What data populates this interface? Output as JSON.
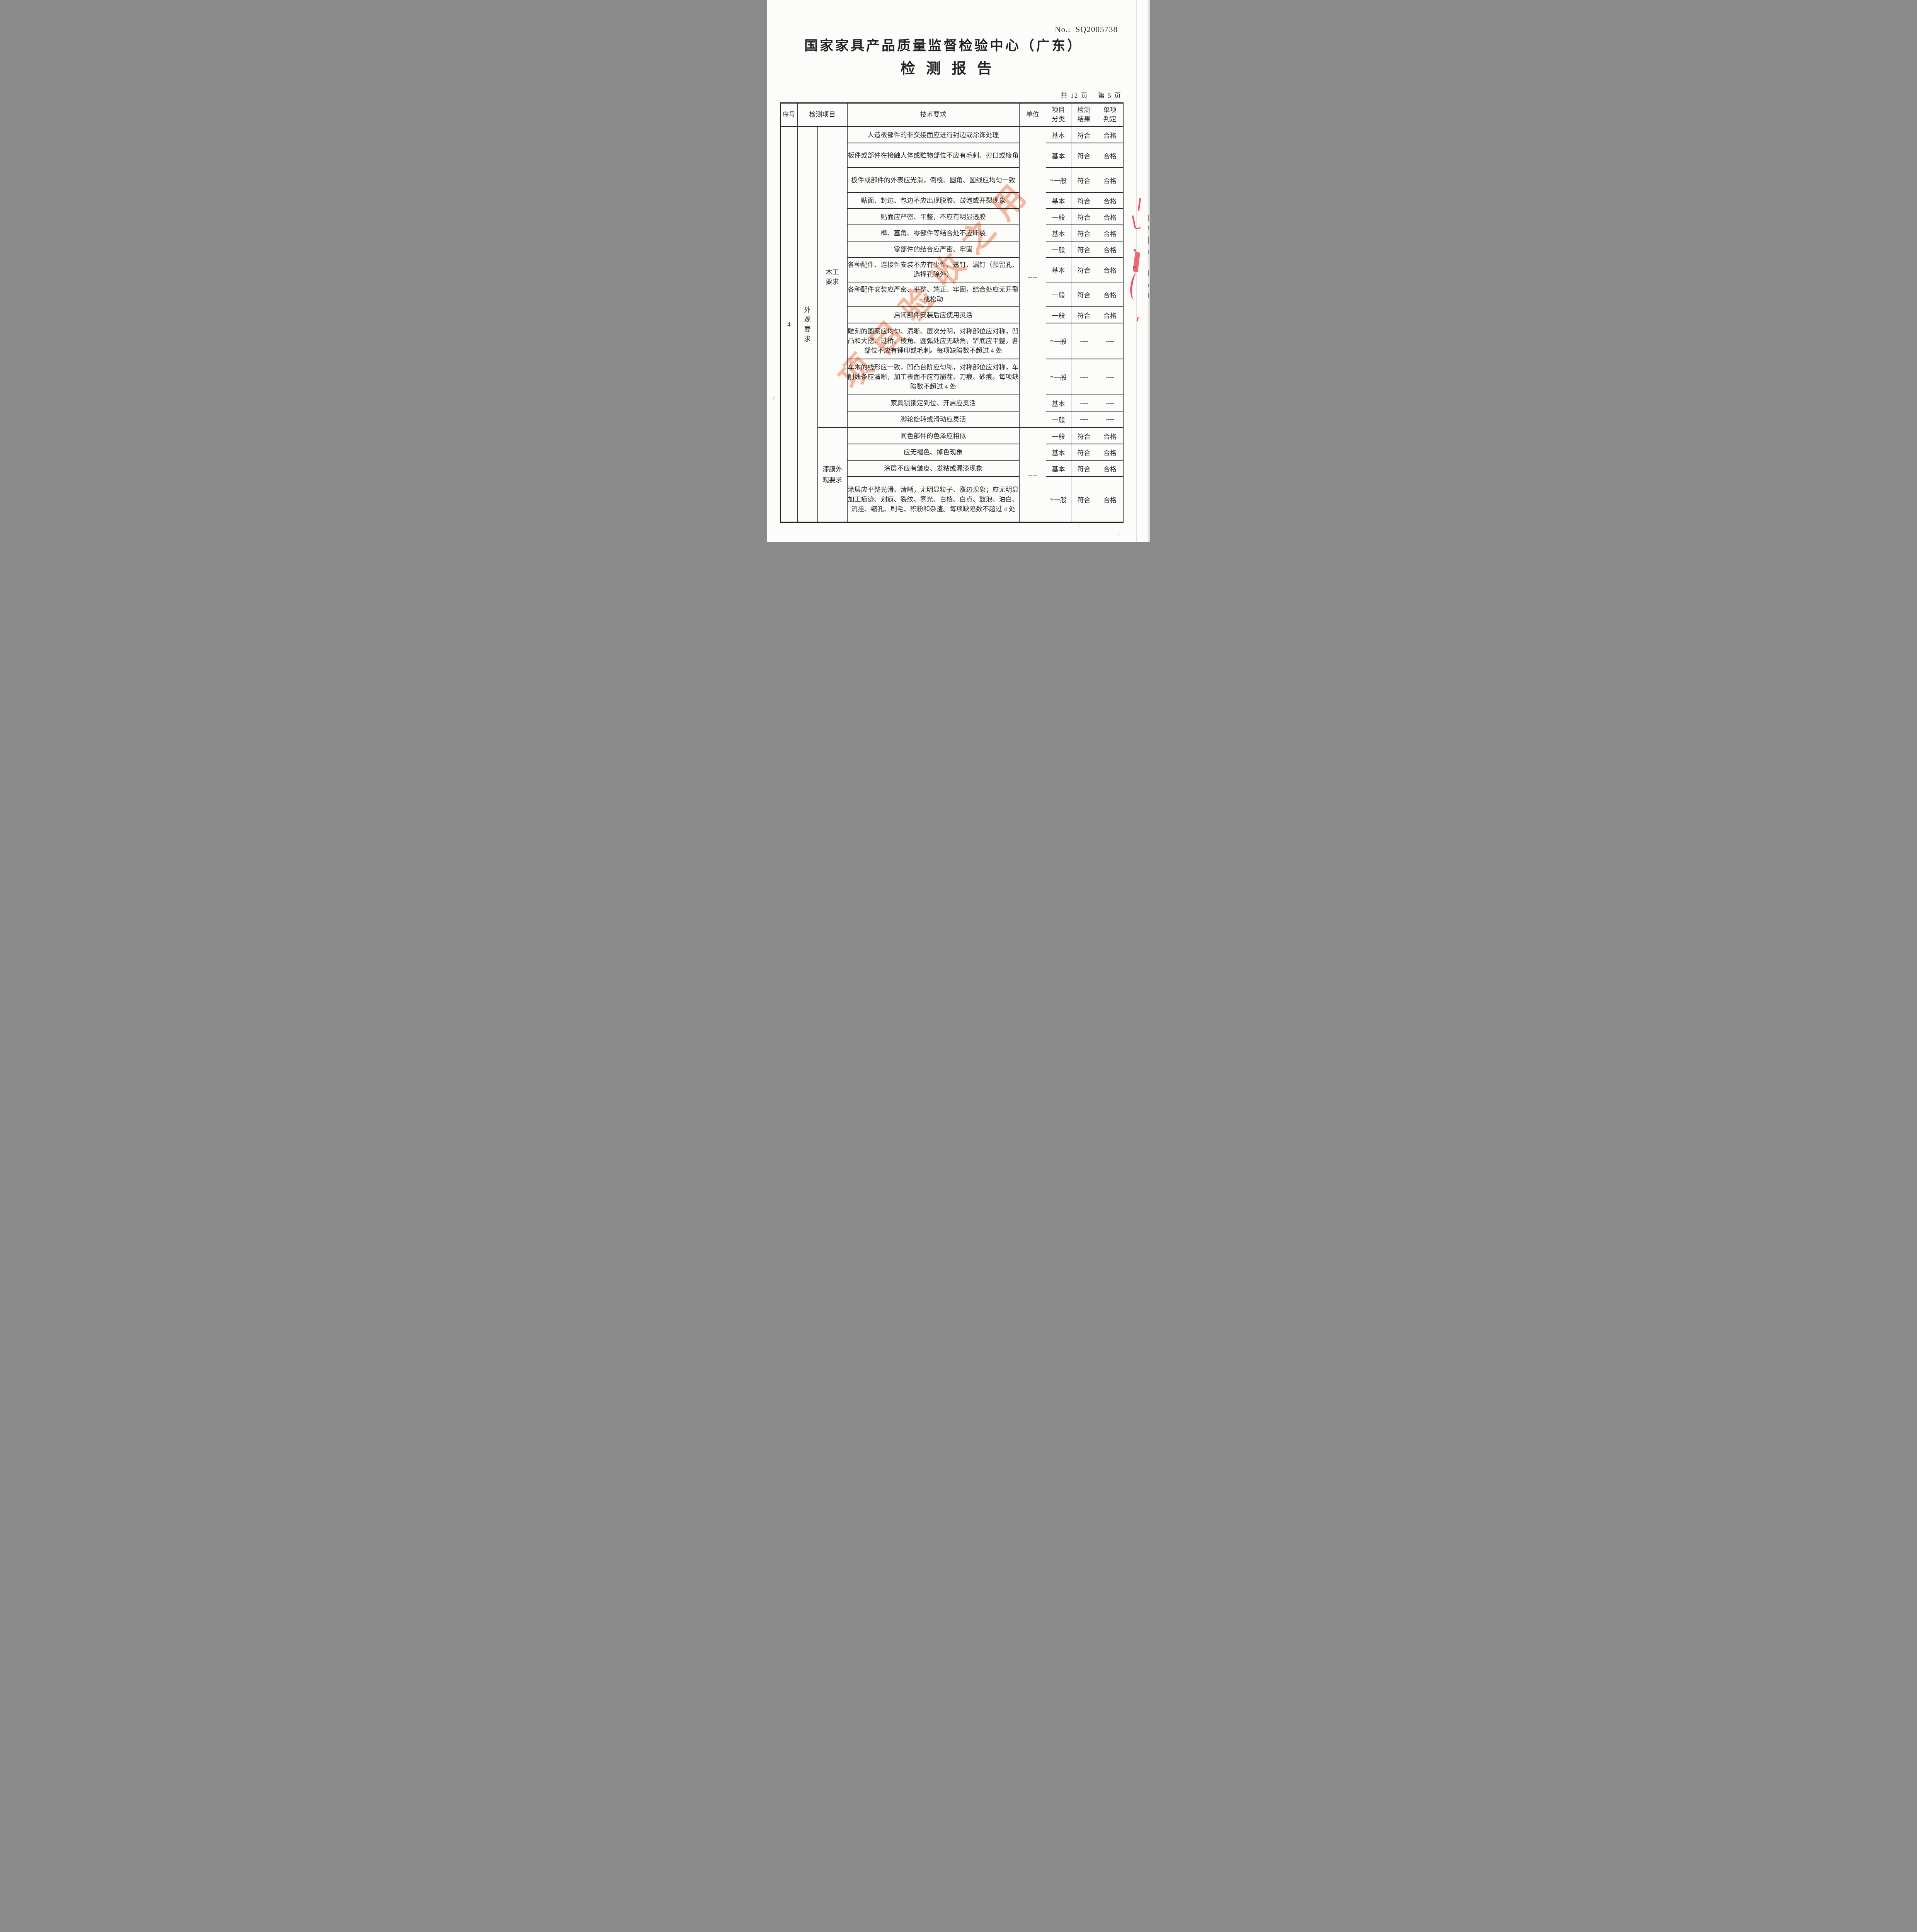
{
  "page": {
    "doc_no": "No.:  SQ2005738",
    "title": "国家家具产品质量监督检验中心（广东）",
    "subtitle": "检测报告",
    "page_info": "共 12 页　 第 5 页",
    "watermark": "项目验收之用"
  },
  "table": {
    "headers": {
      "seq": "序号",
      "item": "检测项目",
      "tech": "技术要求",
      "unit": "单位",
      "category": "项目分类",
      "result": "检测结果",
      "verdict": "单项判定"
    },
    "section_no": "4",
    "group_label": "外观要求",
    "sections": [
      {
        "label": "木工要求",
        "unit": "----",
        "rows": [
          {
            "tech": "人造板部件的非交接面应进行封边或涂饰处理",
            "category": "基本",
            "result": "符合",
            "verdict": "合格",
            "lines": 1
          },
          {
            "tech": "板件或部件在接触人体或贮物部位不应有毛刺、刃口或棱角",
            "category": "基本",
            "result": "符合",
            "verdict": "合格",
            "lines": 2
          },
          {
            "tech": "板件或部件的外表应光滑，倒棱、圆角、圆线应均匀一致",
            "category": "*一般",
            "result": "符合",
            "verdict": "合格",
            "lines": 2
          },
          {
            "tech": "贴面、封边、包边不应出现脱胶、鼓泡或开裂现象",
            "category": "基本",
            "result": "符合",
            "verdict": "合格",
            "lines": 1
          },
          {
            "tech": "贴面应严密、平整，不应有明显透胶",
            "category": "一般",
            "result": "符合",
            "verdict": "合格",
            "lines": 1
          },
          {
            "tech": "榫、塞角、零部件等结合处不应断裂",
            "category": "基本",
            "result": "符合",
            "verdict": "合格",
            "lines": 1
          },
          {
            "tech": "零部件的结合应严密、牢固",
            "category": "一般",
            "result": "符合",
            "verdict": "合格",
            "lines": 1
          },
          {
            "tech": "各种配件、连接件安装不应有少件、透钉、漏钉（预留孔、选择孔除外）",
            "category": "基本",
            "result": "符合",
            "verdict": "合格",
            "lines": 2
          },
          {
            "tech": "各种配件安装应严密、平整、端正、牢固，结合处应无开裂或松动",
            "category": "一般",
            "result": "符合",
            "verdict": "合格",
            "lines": 2
          },
          {
            "tech": "启闭部件安装后应使用灵活",
            "category": "一般",
            "result": "符合",
            "verdict": "合格",
            "lines": 1
          },
          {
            "tech": "雕刻的图案应均匀、清晰、层次分明，对称部位应对称，凹凸和大挖、过桥、棱角、圆弧处应无缺角，铲底应平整，各部位不应有锤印或毛刺。每项缺陷数不超过 4 处",
            "category": "*一般",
            "result": "----",
            "verdict": "----",
            "lines": 3
          },
          {
            "tech": "车木的线形应一致，凹凸台阶应匀称，对称部位应对称，车削线条应清晰，加工表面不应有崩茬、刀痕、砂痕。每项缺陷数不超过 4 处",
            "category": "*一般",
            "result": "----",
            "verdict": "----",
            "lines": 3
          },
          {
            "tech": "家具锁锁定到位、开启应灵活",
            "category": "基本",
            "result": "----",
            "verdict": "----",
            "lines": 1
          },
          {
            "tech": "脚轮旋转或滑动应灵活",
            "category": "一般",
            "result": "----",
            "verdict": "----",
            "lines": 1
          }
        ]
      },
      {
        "label": "漆膜外观要求",
        "unit": "----",
        "rows": [
          {
            "tech": "同色部件的色泽应相似",
            "category": "一般",
            "result": "符合",
            "verdict": "合格",
            "lines": 1
          },
          {
            "tech": "应无褪色、掉色现象",
            "category": "基本",
            "result": "符合",
            "verdict": "合格",
            "lines": 1
          },
          {
            "tech": "涂层不应有皱皮、发粘或漏漆现象",
            "category": "基本",
            "result": "符合",
            "verdict": "合格",
            "lines": 1
          },
          {
            "tech": "涂层应平整光滑、清晰，无明显粒子、涨边现象；应无明显加工痕迹、划痕、裂纹、雾光、白棱、白点、鼓泡、油白、流挂、缩孔、刷毛、积粉和杂渣。每项缺陷数不超过 4 处",
            "category": "*一般",
            "result": "符合",
            "verdict": "合格",
            "lines": 4
          }
        ]
      }
    ]
  },
  "colors": {
    "ink": "#262626",
    "border": "#232323",
    "watermark_pink": "#f6b196",
    "stamp_red": "#e8505f"
  }
}
